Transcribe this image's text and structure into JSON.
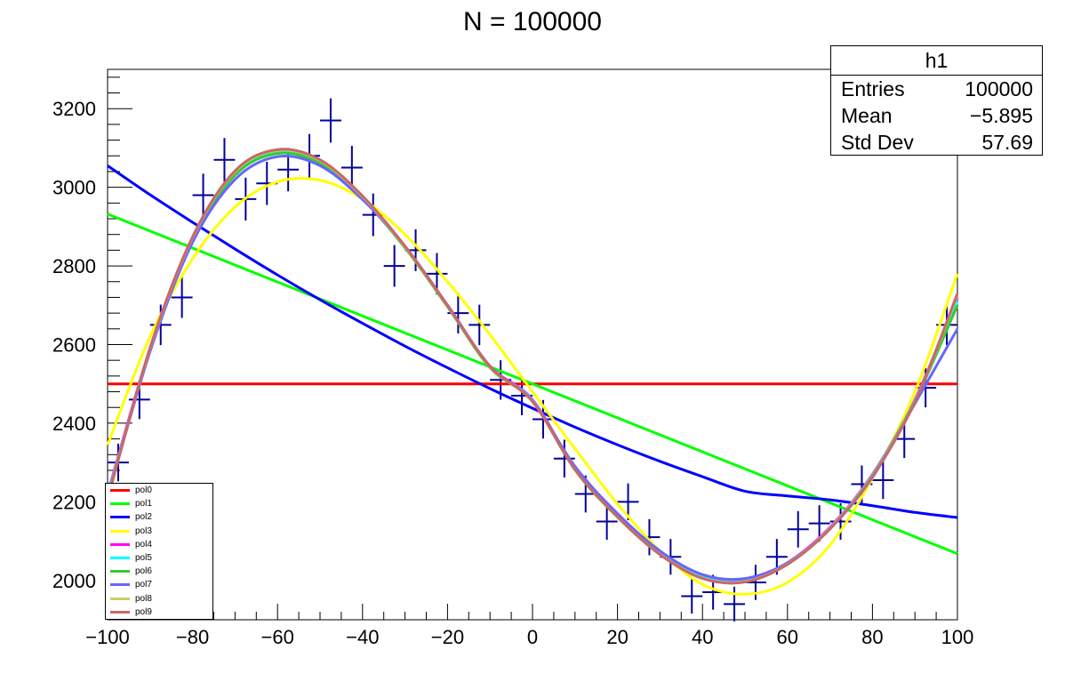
{
  "chart_data": {
    "type": "line",
    "title": "N = 100000",
    "xlim": [
      -100,
      100
    ],
    "ylim": [
      1900,
      3300
    ],
    "x_ticks": [
      -100,
      -80,
      -60,
      -40,
      -20,
      0,
      20,
      40,
      60,
      80,
      100
    ],
    "y_ticks": [
      2000,
      2200,
      2400,
      2600,
      2800,
      3000,
      3200
    ],
    "x_tick_labels": [
      "−100",
      "−80",
      "−60",
      "−40",
      "−20",
      "0",
      "20",
      "40",
      "60",
      "80",
      "100"
    ],
    "y_tick_labels": [
      "2000",
      "2200",
      "2400",
      "2600",
      "2800",
      "3000",
      "3200"
    ],
    "grid": false,
    "legend_position": "bottom-left",
    "histogram": {
      "name": "h1",
      "bin_width": 5,
      "x": [
        -97.5,
        -92.5,
        -87.5,
        -82.5,
        -77.5,
        -72.5,
        -67.5,
        -62.5,
        -57.5,
        -52.5,
        -47.5,
        -42.5,
        -37.5,
        -32.5,
        -27.5,
        -22.5,
        -17.5,
        -12.5,
        -7.5,
        -2.5,
        2.5,
        7.5,
        12.5,
        17.5,
        22.5,
        27.5,
        32.5,
        37.5,
        42.5,
        47.5,
        52.5,
        57.5,
        62.5,
        67.5,
        72.5,
        77.5,
        82.5,
        87.5,
        92.5,
        97.5
      ],
      "values": [
        2300,
        2460,
        2650,
        2720,
        2980,
        3070,
        2970,
        3010,
        3045,
        3080,
        3170,
        3050,
        2930,
        2800,
        2840,
        2780,
        2680,
        2650,
        2510,
        2470,
        2410,
        2310,
        2220,
        2150,
        2200,
        2110,
        2060,
        1960,
        1970,
        1940,
        1995,
        2060,
        2130,
        2145,
        2150,
        2245,
        2255,
        2360,
        2490,
        2650
      ],
      "color": "#000099"
    },
    "series": [
      {
        "name": "pol0",
        "color": "#ff0000",
        "x": [
          -100,
          100
        ],
        "values": [
          2500,
          2500
        ]
      },
      {
        "name": "pol1",
        "color": "#00ff00",
        "x": [
          -100,
          -50,
          0,
          50,
          100
        ],
        "values": [
          2932,
          2716,
          2500,
          2284,
          2068
        ]
      },
      {
        "name": "pol2",
        "color": "#0000ff",
        "x": [
          -100,
          -90,
          -80,
          -70,
          -60,
          -50,
          -40,
          -30,
          -20,
          -10,
          0,
          10,
          20,
          30,
          40,
          50,
          60,
          70,
          80,
          90,
          100
        ],
        "values": [
          3055,
          2981,
          2911,
          2843,
          2777,
          2714,
          2654,
          2596,
          2541,
          2488,
          2438,
          2390,
          2345,
          2303,
          2264,
          2227,
          2215,
          2205,
          2190,
          2173,
          2160
        ]
      },
      {
        "name": "pol3",
        "color": "#ffff00",
        "x": [
          -100,
          -90,
          -80,
          -70,
          -60,
          -50,
          -40,
          -30,
          -20,
          -10,
          0,
          10,
          20,
          30,
          40,
          50,
          60,
          70,
          80,
          90,
          100
        ],
        "values": [
          2345,
          2620,
          2818,
          2950,
          3014,
          3018,
          2970,
          2880,
          2760,
          2625,
          2480,
          2335,
          2195,
          2075,
          1990,
          1965,
          1995,
          2090,
          2260,
          2480,
          2780
        ]
      },
      {
        "name": "pol4",
        "color": "#ff00ff",
        "x": [
          -100,
          -90,
          -80,
          -70,
          -60,
          -50,
          -40,
          -30,
          -20,
          -10,
          0,
          10,
          20,
          30,
          40,
          50,
          60,
          70,
          80,
          90,
          100
        ],
        "values": [
          2220,
          2590,
          2870,
          3035,
          3090,
          3065,
          2975,
          2850,
          2700,
          2545,
          2460,
          2285,
          2165,
          2070,
          2010,
          2000,
          2045,
          2135,
          2270,
          2460,
          2720
        ]
      },
      {
        "name": "pol5",
        "color": "#00ffff",
        "x": [
          -100,
          -90,
          -80,
          -70,
          -60,
          -50,
          -40,
          -30,
          -20,
          -10,
          0,
          10,
          20,
          30,
          40,
          50,
          60,
          70,
          80,
          90,
          100
        ],
        "values": [
          2215,
          2588,
          2868,
          3033,
          3088,
          3063,
          2973,
          2848,
          2698,
          2543,
          2458,
          2283,
          2163,
          2068,
          2008,
          1998,
          2043,
          2133,
          2268,
          2458,
          2710
        ]
      },
      {
        "name": "pol6",
        "color": "#33cc33",
        "x": [
          -100,
          -90,
          -80,
          -70,
          -60,
          -50,
          -40,
          -30,
          -20,
          -10,
          0,
          10,
          20,
          30,
          40,
          50,
          60,
          70,
          80,
          90,
          100
        ],
        "values": [
          2212,
          2586,
          2866,
          3031,
          3086,
          3061,
          2971,
          2846,
          2696,
          2541,
          2456,
          2281,
          2161,
          2066,
          2006,
          1996,
          2041,
          2131,
          2266,
          2456,
          2700
        ]
      },
      {
        "name": "pol7",
        "color": "#6666ff",
        "x": [
          -100,
          -90,
          -80,
          -70,
          -60,
          -50,
          -40,
          -30,
          -20,
          -10,
          0,
          10,
          20,
          30,
          40,
          50,
          60,
          70,
          80,
          90,
          100
        ],
        "values": [
          2210,
          2582,
          2860,
          3020,
          3078,
          3055,
          2969,
          2850,
          2700,
          2545,
          2456,
          2290,
          2170,
          2075,
          2015,
          2005,
          2045,
          2131,
          2262,
          2450,
          2640
        ]
      },
      {
        "name": "pol8",
        "color": "#cccc66",
        "x": [
          -100,
          -90,
          -80,
          -70,
          -60,
          -50,
          -40,
          -30,
          -20,
          -10,
          0,
          10,
          20,
          30,
          40,
          50,
          60,
          70,
          80,
          90,
          100
        ],
        "values": [
          2208,
          2590,
          2872,
          3040,
          3094,
          3068,
          2976,
          2849,
          2698,
          2543,
          2455,
          2282,
          2162,
          2067,
          2006,
          1997,
          2042,
          2132,
          2265,
          2455,
          2725
        ]
      },
      {
        "name": "pol9",
        "color": "#cc6666",
        "x": [
          -100,
          -90,
          -80,
          -70,
          -60,
          -50,
          -40,
          -30,
          -20,
          -10,
          0,
          10,
          20,
          30,
          40,
          50,
          60,
          70,
          80,
          90,
          100
        ],
        "values": [
          2206,
          2592,
          2874,
          3042,
          3096,
          3070,
          2978,
          2850,
          2699,
          2544,
          2455,
          2282,
          2162,
          2066,
          2005,
          1996,
          2041,
          2131,
          2264,
          2454,
          2730
        ]
      }
    ]
  },
  "stats": {
    "name": "h1",
    "rows": [
      {
        "label": "Entries",
        "value": "100000"
      },
      {
        "label": "Mean",
        "value": "−5.895"
      },
      {
        "label": "Std Dev",
        "value": "57.69"
      }
    ]
  }
}
